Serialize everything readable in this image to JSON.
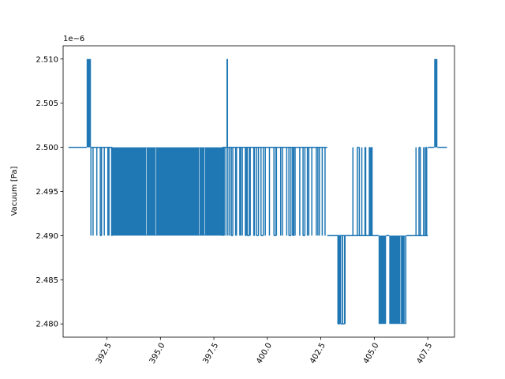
{
  "chart_data": {
    "type": "line",
    "title": "",
    "xlabel": "",
    "ylabel": "Vacuum [Pa]",
    "y_offset_label": "1e−6",
    "xlim": [
      390.45,
      408.75
    ],
    "ylim": [
      2.4785,
      2.5115
    ],
    "x_ticks": [
      392.5,
      395.0,
      397.5,
      400.0,
      402.5,
      405.0,
      407.5
    ],
    "x_tick_labels": [
      "392.5",
      "395.0",
      "397.5",
      "400.0",
      "402.5",
      "405.0",
      "407.5"
    ],
    "y_ticks": [
      2.48,
      2.485,
      2.49,
      2.495,
      2.5,
      2.505,
      2.51
    ],
    "y_tick_labels": [
      "2.480",
      "2.485",
      "2.490",
      "2.495",
      "2.500",
      "2.505",
      "2.510"
    ],
    "x_tick_rotation_deg": 60,
    "grid": false,
    "legend": "none",
    "series": [
      {
        "color": "#1f77b4",
        "baseline": 2.5,
        "segments": [
          {
            "x": [
              390.7,
              391.55
            ],
            "pattern": "flat",
            "levels": [
              2.5
            ]
          },
          {
            "x": [
              391.55,
              391.75
            ],
            "pattern": "dense",
            "levels": [
              2.5,
              2.51
            ]
          },
          {
            "x": [
              391.75,
              392.75
            ],
            "pattern": "sparse",
            "levels": [
              2.5,
              2.49
            ]
          },
          {
            "x": [
              392.75,
              397.9
            ],
            "pattern": "dense",
            "levels": [
              2.5,
              2.49
            ]
          },
          {
            "x": [
              397.9,
              398.1
            ],
            "pattern": "sparse",
            "levels": [
              2.5,
              2.49
            ]
          },
          {
            "x": [
              398.1,
              398.15
            ],
            "pattern": "spike",
            "levels": [
              2.5,
              2.51
            ]
          },
          {
            "x": [
              398.15,
              402.8
            ],
            "pattern": "sparse",
            "levels": [
              2.5,
              2.49
            ]
          },
          {
            "x": [
              402.8,
              403.3
            ],
            "pattern": "flat",
            "levels": [
              2.49
            ]
          },
          {
            "x": [
              403.3,
              403.7
            ],
            "pattern": "sparse",
            "levels": [
              2.49,
              2.48
            ]
          },
          {
            "x": [
              403.7,
              404.0
            ],
            "pattern": "flat",
            "levels": [
              2.49
            ]
          },
          {
            "x": [
              404.0,
              404.9
            ],
            "pattern": "sparse",
            "levels": [
              2.49,
              2.5
            ]
          },
          {
            "x": [
              404.9,
              405.2
            ],
            "pattern": "flat",
            "levels": [
              2.49
            ]
          },
          {
            "x": [
              405.2,
              405.55
            ],
            "pattern": "dense",
            "levels": [
              2.49,
              2.48
            ]
          },
          {
            "x": [
              405.55,
              405.7
            ],
            "pattern": "flat",
            "levels": [
              2.49
            ]
          },
          {
            "x": [
              405.7,
              406.5
            ],
            "pattern": "dense",
            "levels": [
              2.49,
              2.48
            ]
          },
          {
            "x": [
              406.5,
              406.95
            ],
            "pattern": "flat",
            "levels": [
              2.49
            ]
          },
          {
            "x": [
              406.95,
              407.5
            ],
            "pattern": "sparse",
            "levels": [
              2.49,
              2.5
            ]
          },
          {
            "x": [
              407.5,
              407.8
            ],
            "pattern": "flat",
            "levels": [
              2.5
            ]
          },
          {
            "x": [
              407.8,
              407.95
            ],
            "pattern": "dense",
            "levels": [
              2.5,
              2.51
            ]
          },
          {
            "x": [
              407.95,
              408.4
            ],
            "pattern": "flat",
            "levels": [
              2.5
            ]
          }
        ]
      }
    ]
  }
}
